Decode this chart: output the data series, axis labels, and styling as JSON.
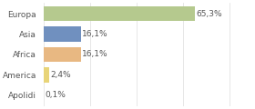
{
  "categories": [
    "Europa",
    "Asia",
    "Africa",
    "America",
    "Apolidi"
  ],
  "values": [
    65.3,
    16.1,
    16.1,
    2.4,
    0.1
  ],
  "labels": [
    "65,3%",
    "16,1%",
    "16,1%",
    "2,4%",
    "0,1%"
  ],
  "colors": [
    "#b5c98e",
    "#7090bf",
    "#e8b882",
    "#e8d478",
    "#cccccc"
  ],
  "background_color": "#ffffff",
  "label_fontsize": 6.5,
  "tick_fontsize": 6.5,
  "bar_height": 0.72,
  "xlim": [
    0,
    90
  ],
  "grid_color": "#dddddd",
  "text_color": "#555555"
}
